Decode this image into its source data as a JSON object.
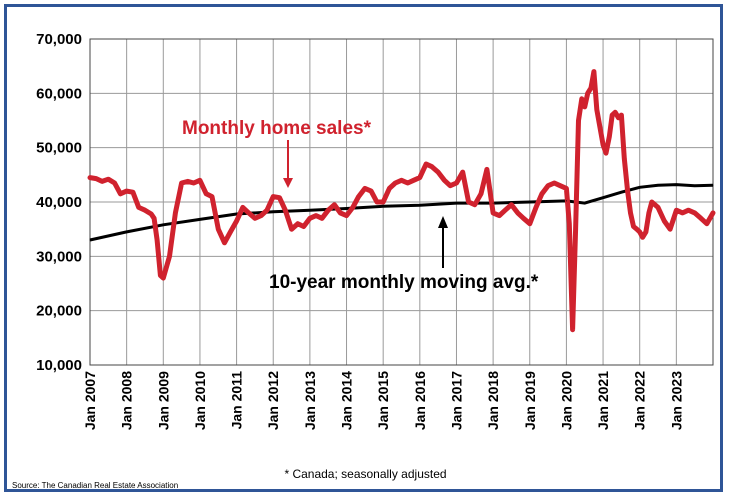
{
  "chart_data": {
    "type": "line",
    "ylim": [
      10000,
      70000
    ],
    "yticks": [
      "10,000",
      "20,000",
      "30,000",
      "40,000",
      "50,000",
      "60,000",
      "70,000"
    ],
    "ytick_values": [
      10000,
      20000,
      30000,
      40000,
      50000,
      60000,
      70000
    ],
    "xlim": [
      2007.0,
      2024.0
    ],
    "xticks": [
      "Jan 2007",
      "Jan 2008",
      "Jan 2009",
      "Jan 2010",
      "Jan 2011",
      "Jan 2012",
      "Jan 2013",
      "Jan 2014",
      "Jan 2015",
      "Jan 2016",
      "Jan 2017",
      "Jan 2018",
      "Jan 2019",
      "Jan 2020",
      "Jan 2021",
      "Jan 2022",
      "Jan 2023"
    ],
    "grid": true,
    "series": [
      {
        "name": "Monthly home sales*",
        "color": "#d0222e",
        "x": [
          2007.0,
          2007.17,
          2007.33,
          2007.5,
          2007.67,
          2007.83,
          2008.0,
          2008.17,
          2008.33,
          2008.5,
          2008.67,
          2008.75,
          2008.83,
          2008.92,
          2009.0,
          2009.17,
          2009.33,
          2009.5,
          2009.67,
          2009.83,
          2010.0,
          2010.17,
          2010.33,
          2010.5,
          2010.67,
          2010.83,
          2011.0,
          2011.17,
          2011.33,
          2011.5,
          2011.67,
          2011.83,
          2012.0,
          2012.17,
          2012.33,
          2012.5,
          2012.67,
          2012.83,
          2013.0,
          2013.17,
          2013.33,
          2013.5,
          2013.67,
          2013.83,
          2014.0,
          2014.17,
          2014.33,
          2014.5,
          2014.67,
          2014.83,
          2015.0,
          2015.17,
          2015.33,
          2015.5,
          2015.67,
          2015.83,
          2016.0,
          2016.17,
          2016.33,
          2016.5,
          2016.67,
          2016.83,
          2017.0,
          2017.17,
          2017.33,
          2017.5,
          2017.67,
          2017.83,
          2018.0,
          2018.17,
          2018.33,
          2018.5,
          2018.67,
          2018.83,
          2019.0,
          2019.17,
          2019.33,
          2019.5,
          2019.67,
          2019.83,
          2020.0,
          2020.08,
          2020.17,
          2020.25,
          2020.33,
          2020.42,
          2020.5,
          2020.58,
          2020.67,
          2020.75,
          2020.83,
          2021.0,
          2021.08,
          2021.17,
          2021.25,
          2021.33,
          2021.42,
          2021.5,
          2021.58,
          2021.67,
          2021.75,
          2021.83,
          2021.92,
          2022.0,
          2022.08,
          2022.17,
          2022.25,
          2022.33,
          2022.5,
          2022.67,
          2022.83,
          2023.0,
          2023.17,
          2023.33,
          2023.5,
          2023.67,
          2023.83,
          2024.0
        ],
        "y": [
          44500,
          44300,
          43800,
          44200,
          43500,
          41500,
          42000,
          41800,
          39000,
          38500,
          37800,
          37000,
          33000,
          26500,
          26000,
          30000,
          38000,
          43500,
          43800,
          43500,
          44000,
          41500,
          41000,
          35000,
          32500,
          34500,
          36500,
          39000,
          38000,
          37000,
          37500,
          38500,
          41000,
          40800,
          38500,
          35000,
          36000,
          35500,
          37000,
          37500,
          37000,
          38500,
          39500,
          38000,
          37500,
          39000,
          41000,
          42500,
          42000,
          40000,
          40000,
          42500,
          43500,
          44000,
          43500,
          44000,
          44500,
          47000,
          46500,
          45500,
          44000,
          43000,
          43500,
          45500,
          40000,
          39500,
          41500,
          46000,
          38000,
          37500,
          38500,
          39500,
          38000,
          37000,
          36000,
          39000,
          41500,
          43000,
          43500,
          43000,
          42500,
          36000,
          16500,
          35000,
          55000,
          59000,
          57500,
          60000,
          61000,
          64000,
          57000,
          50500,
          49000,
          52000,
          56000,
          56500,
          55500,
          56000,
          48000,
          42000,
          38000,
          35500,
          35000,
          34500,
          33500,
          34500,
          38000,
          40000,
          39000,
          36500,
          35000,
          38500,
          38000,
          38500,
          38000,
          37000,
          36000,
          38000
        ],
        "values_note": ""
      },
      {
        "name": "10-year monthly moving avg.*",
        "color": "#000000",
        "x": [
          2007.0,
          2008.0,
          2009.0,
          2010.0,
          2011.0,
          2012.0,
          2013.0,
          2014.0,
          2015.0,
          2016.0,
          2017.0,
          2018.0,
          2019.0,
          2020.0,
          2020.5,
          2021.0,
          2021.5,
          2022.0,
          2022.5,
          2023.0,
          2023.5,
          2024.0
        ],
        "y": [
          33000,
          34500,
          35800,
          36800,
          37800,
          38200,
          38500,
          38800,
          39200,
          39400,
          39800,
          39800,
          40000,
          40200,
          39800,
          40800,
          41800,
          42700,
          43100,
          43200,
          43000,
          43100
        ]
      }
    ],
    "annotations": {
      "sales_label": "Monthly home sales*",
      "avg_label": "10-year monthly moving avg.*"
    },
    "footnote": "* Canada; seasonally adjusted",
    "source": "Source: The Canadian Real Estate Association"
  }
}
